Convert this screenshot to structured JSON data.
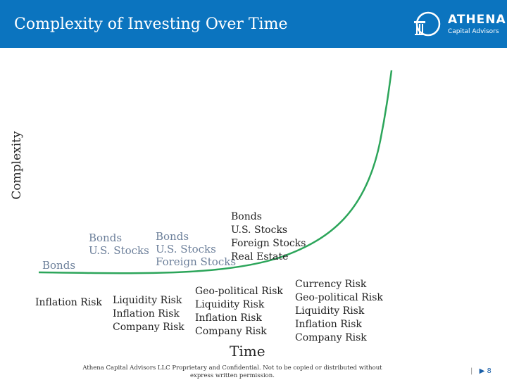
{
  "header": {
    "title": "Complexity of Investing Over Time",
    "logo": {
      "name": "ATHENA",
      "sub": "Capital Advisors"
    },
    "background_color": "#0b74bf"
  },
  "diagram": {
    "y_axis_label": "Complexity",
    "x_axis_label": "Time",
    "stages": [
      {
        "investments": [
          "Bonds"
        ],
        "risks": [
          "Inflation Risk"
        ]
      },
      {
        "investments": [
          "Bonds",
          "U.S. Stocks"
        ],
        "risks": [
          "Liquidity Risk",
          "Inflation Risk",
          "Company Risk"
        ]
      },
      {
        "investments": [
          "Bonds",
          "U.S. Stocks",
          "Foreign Stocks"
        ],
        "risks": [
          "Geo-political Risk",
          "Liquidity Risk",
          "Inflation Risk",
          "Company Risk"
        ]
      },
      {
        "investments": [
          "Bonds",
          "U.S. Stocks",
          "Foreign Stocks",
          "Real Estate"
        ],
        "risks": [
          "Currency Risk",
          "Geo-political Risk",
          "Liquidity Risk",
          "Inflation Risk",
          "Company Risk"
        ]
      }
    ],
    "curve_color": "#2ca55a"
  },
  "footer": {
    "disclaimer_line1": "Athena Capital Advisors LLC Proprietary and Confidential. Not to be copied or distributed without",
    "disclaimer_line2": "express written permission.",
    "page_number": "8"
  }
}
